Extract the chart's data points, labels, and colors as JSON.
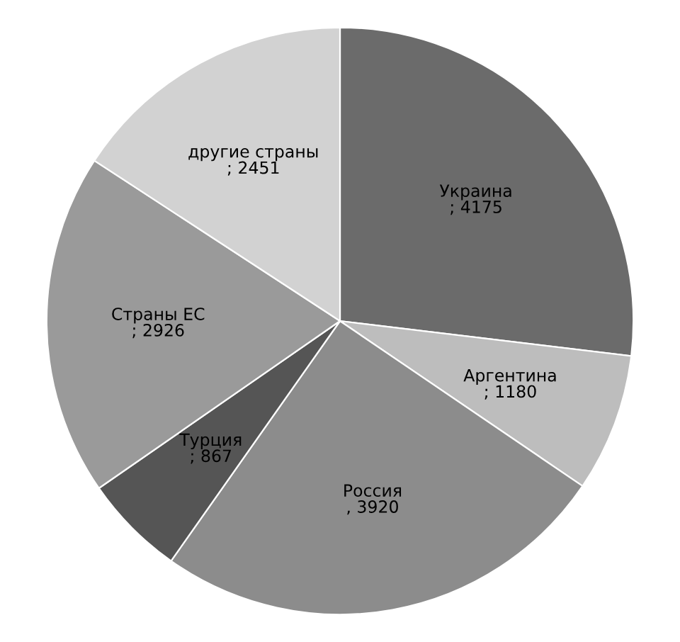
{
  "chart_data": {
    "type": "pie",
    "categories": [
      "Украина",
      "Аргентина",
      "Россия",
      "Турция",
      "Страны ЕС",
      "другие страны"
    ],
    "values": [
      4175,
      1180,
      3920,
      867,
      2926,
      2451
    ],
    "colors": [
      "#6b6b6b",
      "#bdbdbd",
      "#8c8c8c",
      "#555555",
      "#9a9a9a",
      "#d2d2d2"
    ],
    "value_labels": [
      "; 4175",
      "; 1180",
      ", 3920",
      "; 867",
      "; 2926",
      "; 2451"
    ]
  }
}
